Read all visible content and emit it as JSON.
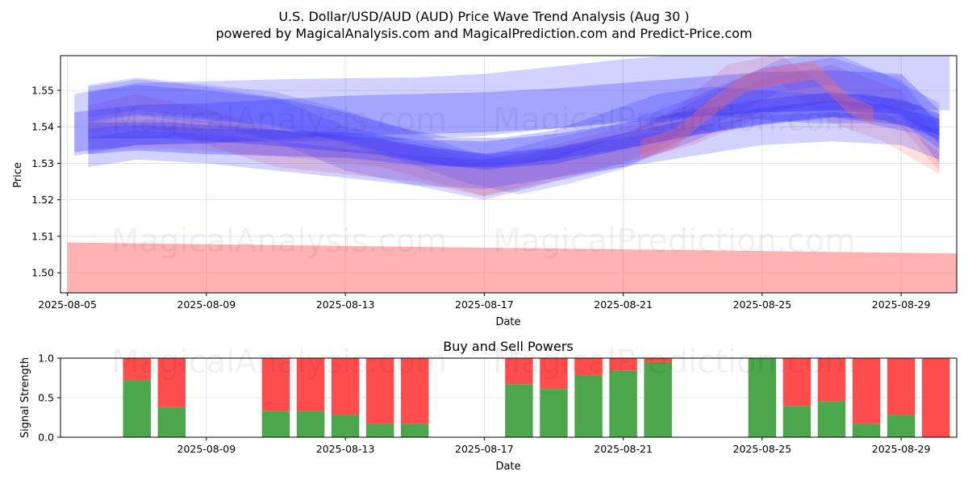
{
  "colors": {
    "buy": "#4ca64c",
    "sell": "#ff4d4d",
    "wave_blue": "#3333ff",
    "wave_red": "#ff6666",
    "grid": "#dddddd"
  },
  "watermarks": [
    "MagicalAnalysis.com",
    "MagicalPrediction.com"
  ],
  "chart_data": [
    {
      "type": "area",
      "title": "U.S. Dollar/USD/AUD (AUD) Price Wave Trend Analysis (Aug 30 )",
      "subtitle": "powered by MagicalAnalysis.com and MagicalPrediction.com and Predict-Price.com",
      "xlabel": "Date",
      "ylabel": "Price",
      "xlim": [
        -0.2,
        25.6
      ],
      "ylim": [
        1.4945,
        1.5595
      ],
      "x_ticks": [
        0,
        4,
        8,
        12,
        16,
        20,
        24
      ],
      "x_tick_labels": [
        "2025-08-05",
        "2025-08-09",
        "2025-08-13",
        "2025-08-17",
        "2025-08-21",
        "2025-08-25",
        "2025-08-29"
      ],
      "y_ticks": [
        1.5,
        1.51,
        1.52,
        1.53,
        1.54,
        1.55
      ],
      "y_tick_labels": [
        "1.50",
        "1.51",
        "1.52",
        "1.53",
        "1.54",
        "1.55"
      ],
      "grid": true,
      "bands": [
        {
          "color": "red",
          "opacity": 0.5,
          "x": [
            0,
            25.6
          ],
          "center": [
            1.5005,
            1.4988
          ],
          "halfwidth": [
            0.0078,
            0.0065
          ]
        },
        {
          "color": "red",
          "opacity": 0.22,
          "x": [
            0.6,
            2,
            4,
            6,
            8,
            10,
            12,
            14,
            16,
            18,
            20,
            22,
            24,
            25.1
          ],
          "center": [
            1.542,
            1.545,
            1.54,
            1.534,
            1.532,
            1.53,
            1.526,
            1.53,
            1.535,
            1.54,
            1.548,
            1.552,
            1.545,
            1.532
          ],
          "halfwidth": [
            0.004,
            0.004,
            0.005,
            0.005,
            0.005,
            0.005,
            0.005,
            0.005,
            0.005,
            0.005,
            0.005,
            0.005,
            0.005,
            0.004
          ]
        },
        {
          "color": "red",
          "opacity": 0.2,
          "x": [
            0.6,
            3,
            6,
            9,
            12,
            14,
            16,
            17.5,
            19,
            20.5,
            22,
            23.5,
            25.1
          ],
          "center": [
            1.538,
            1.538,
            1.536,
            1.533,
            1.525,
            1.53,
            1.534,
            1.541,
            1.553,
            1.556,
            1.545,
            1.54,
            1.53
          ],
          "halfwidth": [
            0.004,
            0.004,
            0.004,
            0.004,
            0.004,
            0.004,
            0.004,
            0.004,
            0.004,
            0.004,
            0.004,
            0.004,
            0.003
          ]
        },
        {
          "color": "blue",
          "opacity": 0.2,
          "x": [
            0.6,
            2,
            4,
            6,
            8,
            10,
            12,
            14,
            16,
            18,
            20,
            22,
            24,
            25.1
          ],
          "center": [
            1.546,
            1.548,
            1.546,
            1.542,
            1.534,
            1.53,
            1.526,
            1.531,
            1.535,
            1.542,
            1.55,
            1.553,
            1.548,
            1.535
          ],
          "halfwidth": [
            0.005,
            0.005,
            0.005,
            0.006,
            0.006,
            0.006,
            0.006,
            0.006,
            0.006,
            0.006,
            0.006,
            0.006,
            0.005,
            0.005
          ]
        },
        {
          "color": "blue",
          "opacity": 0.22,
          "x": [
            0.2,
            2,
            4,
            6,
            8,
            10,
            12,
            14,
            16,
            18,
            20,
            22,
            23.4,
            25.4
          ],
          "center": [
            1.5405,
            1.5435,
            1.544,
            1.5445,
            1.5448,
            1.545,
            1.546,
            1.548,
            1.55,
            1.5515,
            1.5525,
            1.553,
            1.5535,
            1.553
          ],
          "halfwidth": [
            0.0085,
            0.0085,
            0.0085,
            0.0085,
            0.0085,
            0.0085,
            0.0085,
            0.0085,
            0.0085,
            0.0085,
            0.0085,
            0.0085,
            0.0085,
            0.0085
          ]
        },
        {
          "color": "blue",
          "opacity": 0.28,
          "x": [
            0.2,
            2,
            4,
            6,
            8,
            10,
            12,
            14,
            16,
            18,
            20,
            22,
            24,
            25.1
          ],
          "center": [
            1.5385,
            1.5405,
            1.541,
            1.542,
            1.543,
            1.5435,
            1.544,
            1.545,
            1.5465,
            1.548,
            1.5495,
            1.55,
            1.549,
            1.54
          ],
          "halfwidth": [
            0.0055,
            0.0055,
            0.0055,
            0.0055,
            0.0055,
            0.0055,
            0.0055,
            0.0055,
            0.0055,
            0.0055,
            0.0055,
            0.0055,
            0.0055,
            0.0045
          ]
        },
        {
          "color": "blue",
          "opacity": 0.25,
          "x": [
            0.6,
            2,
            4,
            6,
            8,
            9.5,
            11,
            12.5,
            14,
            15.5,
            17,
            18.5,
            20,
            21.5,
            23,
            24.5,
            25.1
          ],
          "center": [
            1.5455,
            1.5475,
            1.546,
            1.544,
            1.54,
            1.536,
            1.533,
            1.533,
            1.535,
            1.54,
            1.545,
            1.547,
            1.546,
            1.545,
            1.545,
            1.542,
            1.538
          ],
          "halfwidth": [
            0.004,
            0.004,
            0.004,
            0.004,
            0.004,
            0.004,
            0.004,
            0.004,
            0.004,
            0.004,
            0.004,
            0.004,
            0.004,
            0.004,
            0.004,
            0.004,
            0.004
          ]
        },
        {
          "color": "blue",
          "opacity": 0.3,
          "x": [
            0.6,
            2,
            4,
            6,
            8,
            10,
            12,
            14,
            16,
            18,
            20,
            22,
            24,
            25.1
          ],
          "center": [
            1.536,
            1.537,
            1.536,
            1.5355,
            1.535,
            1.533,
            1.5325,
            1.5345,
            1.5375,
            1.541,
            1.544,
            1.546,
            1.544,
            1.54
          ],
          "halfwidth": [
            0.0035,
            0.0035,
            0.0035,
            0.0035,
            0.0035,
            0.0035,
            0.0035,
            0.0035,
            0.0035,
            0.0035,
            0.0035,
            0.0035,
            0.0035,
            0.0035
          ]
        },
        {
          "color": "blue",
          "opacity": 0.22,
          "x": [
            0.6,
            2,
            4,
            6,
            8,
            10,
            12,
            14,
            16,
            18,
            20,
            22,
            24,
            25.1
          ],
          "center": [
            1.533,
            1.535,
            1.534,
            1.532,
            1.53,
            1.528,
            1.527,
            1.53,
            1.533,
            1.536,
            1.539,
            1.54,
            1.539,
            1.535
          ],
          "halfwidth": [
            0.004,
            0.004,
            0.004,
            0.004,
            0.004,
            0.004,
            0.004,
            0.004,
            0.004,
            0.004,
            0.004,
            0.004,
            0.004,
            0.004
          ]
        },
        {
          "color": "blue",
          "opacity": 0.35,
          "x": [
            0.6,
            3,
            6,
            9,
            10.5,
            12,
            14,
            16,
            18,
            20,
            22,
            23.5,
            25.1
          ],
          "center": [
            1.539,
            1.539,
            1.537,
            1.5345,
            1.532,
            1.5305,
            1.532,
            1.536,
            1.54,
            1.543,
            1.545,
            1.544,
            1.54
          ],
          "halfwidth": [
            0.0022,
            0.0022,
            0.0022,
            0.0022,
            0.0022,
            0.0022,
            0.0022,
            0.0022,
            0.0022,
            0.0022,
            0.0022,
            0.0022,
            0.0022
          ]
        },
        {
          "color": "blue",
          "opacity": 0.18,
          "x": [
            0.6,
            2,
            4,
            6,
            8,
            10,
            11.5,
            13,
            14.5,
            16,
            17.5,
            19,
            20.5,
            22,
            23.5,
            25.1
          ],
          "center": [
            1.547,
            1.549,
            1.547,
            1.545,
            1.54,
            1.534,
            1.529,
            1.526,
            1.529,
            1.533,
            1.54,
            1.547,
            1.554,
            1.556,
            1.55,
            1.542
          ],
          "halfwidth": [
            0.0045,
            0.0045,
            0.0045,
            0.0045,
            0.0045,
            0.0045,
            0.0045,
            0.0045,
            0.0045,
            0.0045,
            0.0045,
            0.0045,
            0.0045,
            0.0045,
            0.0045,
            0.0045
          ]
        },
        {
          "color": "red",
          "opacity": 0.35,
          "x": [
            16.5,
            17.5,
            18.5,
            19.5,
            20.5,
            21.5,
            22.5,
            23.2
          ],
          "center": [
            1.534,
            1.537,
            1.545,
            1.552,
            1.554,
            1.5555,
            1.546,
            1.543
          ],
          "halfwidth": [
            0.0025,
            0.0025,
            0.0025,
            0.0025,
            0.0025,
            0.0025,
            0.0025,
            0.0025
          ]
        }
      ]
    },
    {
      "type": "bar",
      "title": "Buy and Sell Powers",
      "xlabel": "Date",
      "ylabel": "Signal Strength",
      "xlim": [
        -0.2,
        25.6
      ],
      "ylim": [
        0,
        1
      ],
      "y_ticks": [
        0.0,
        0.5,
        1.0
      ],
      "y_tick_labels": [
        "0.0",
        "0.5",
        "1.0"
      ],
      "x_ticks": [
        4,
        8,
        12,
        16,
        20,
        24
      ],
      "x_tick_labels": [
        "2025-08-09",
        "2025-08-13",
        "2025-08-17",
        "2025-08-21",
        "2025-08-25",
        "2025-08-29"
      ],
      "x": [
        2,
        3,
        6,
        7,
        8,
        9,
        10,
        13,
        14,
        15,
        16,
        17,
        20,
        21,
        22,
        23,
        24,
        25
      ],
      "series": [
        {
          "name": "Buy",
          "values": [
            0.72,
            0.38,
            0.33,
            0.33,
            0.28,
            0.17,
            0.17,
            0.67,
            0.61,
            0.78,
            0.84,
            0.95,
            1.0,
            0.39,
            0.45,
            0.17,
            0.28,
            0.0
          ]
        },
        {
          "name": "Sell",
          "values": [
            0.28,
            0.62,
            0.67,
            0.67,
            0.72,
            0.83,
            0.83,
            0.33,
            0.39,
            0.22,
            0.16,
            0.05,
            0.0,
            0.61,
            0.55,
            0.83,
            0.72,
            1.0
          ]
        }
      ]
    }
  ]
}
